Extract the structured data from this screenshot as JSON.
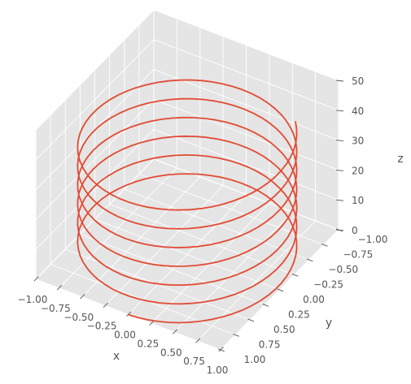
{
  "chart_data": {
    "type": "line",
    "projection": "3d",
    "style": "ggplot",
    "grid": true,
    "xlabel": "x",
    "ylabel": "y",
    "zlabel": "z",
    "xlim": [
      -1.0,
      1.0
    ],
    "ylim": [
      -1.0,
      1.0
    ],
    "zlim": [
      0,
      50
    ],
    "xticks": [
      "−1.00",
      "−0.75",
      "−0.50",
      "−0.25",
      "0.00",
      "0.25",
      "0.50",
      "0.75",
      "1.00"
    ],
    "yticks": [
      "−1.00",
      "−0.75",
      "−0.50",
      "−0.25",
      "0.00",
      "0.25",
      "0.50",
      "0.75",
      "1.00"
    ],
    "zticks": [
      "0",
      "10",
      "20",
      "30",
      "40",
      "50"
    ],
    "series": [
      {
        "color": "#E24A33",
        "equation": "x = sin(t), y = cos(t), z = t",
        "t_range": [
          0,
          40
        ],
        "points": 400
      }
    ]
  }
}
